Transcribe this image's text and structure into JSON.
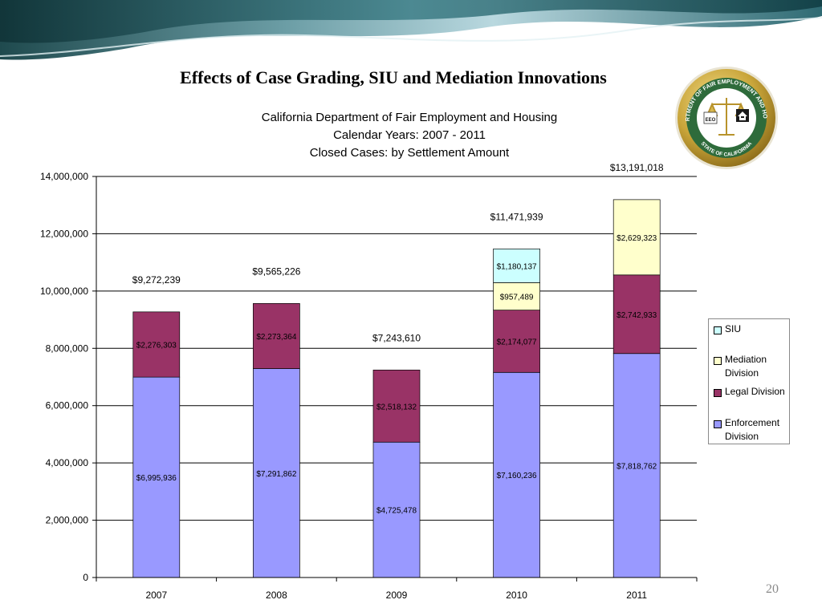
{
  "slide_title": "Effects of Case Grading, SIU and Mediation Innovations",
  "page_number": "20",
  "seal": {
    "top_text": "DEPARTMENT OF FAIR EMPLOYMENT AND HOUSING",
    "bottom_text": "STATE OF CALIFORNIA",
    "badge_text": "EEO"
  },
  "colors": {
    "enforcement": "#9999FF",
    "legal": "#993366",
    "mediation": "#FFFFCC",
    "siu": "#CCFFFF"
  },
  "chart_data": {
    "type": "bar",
    "stacked": true,
    "title": [
      "California Department of Fair Employment and Housing",
      "Calendar Years: 2007 - 2011",
      "Closed Cases: by Settlement Amount"
    ],
    "xlabel": "",
    "ylabel": "",
    "ylim": [
      0,
      14000000
    ],
    "yticks": [
      "0",
      "2,000,000",
      "4,000,000",
      "6,000,000",
      "8,000,000",
      "10,000,000",
      "12,000,000",
      "14,000,000"
    ],
    "ytick_values": [
      0,
      2000000,
      4000000,
      6000000,
      8000000,
      10000000,
      12000000,
      14000000
    ],
    "grid": true,
    "legend_position": "right",
    "categories": [
      "2007",
      "2008",
      "2009",
      "2010",
      "2011"
    ],
    "series": [
      {
        "name": "Enforcement Division",
        "color": "#9999FF",
        "values": [
          6995936,
          7291862,
          4725478,
          7160236,
          7818762
        ],
        "labels": [
          "$6,995,936",
          "$7,291,862",
          "$4,725,478",
          "$7,160,236",
          "$7,818,762"
        ]
      },
      {
        "name": "Legal Division",
        "color": "#993366",
        "values": [
          2276303,
          2273364,
          2518132,
          2174077,
          2742933
        ],
        "labels": [
          "$2,276,303",
          "$2,273,364",
          "$2,518,132",
          "$2,174,077",
          "$2,742,933"
        ]
      },
      {
        "name": "Mediation Division",
        "color": "#FFFFCC",
        "values": [
          0,
          0,
          0,
          957489,
          2629323
        ],
        "labels": [
          "",
          "",
          "",
          "$957,489",
          "$2,629,323"
        ]
      },
      {
        "name": "SIU",
        "color": "#CCFFFF",
        "values": [
          0,
          0,
          0,
          1180137,
          0
        ],
        "labels": [
          "",
          "",
          "",
          "$1,180,137",
          ""
        ]
      }
    ],
    "totals": [
      "$9,272,239",
      "$9,565,226",
      "$7,243,610",
      "$11,471,939",
      "$13,191,018"
    ],
    "legend": [
      {
        "name": "SIU",
        "color": "#CCFFFF"
      },
      {
        "name": "Mediation Division",
        "color": "#FFFFCC"
      },
      {
        "name": "Legal Division",
        "color": "#993366"
      },
      {
        "name": "Enforcement Division",
        "color": "#9999FF"
      }
    ]
  }
}
